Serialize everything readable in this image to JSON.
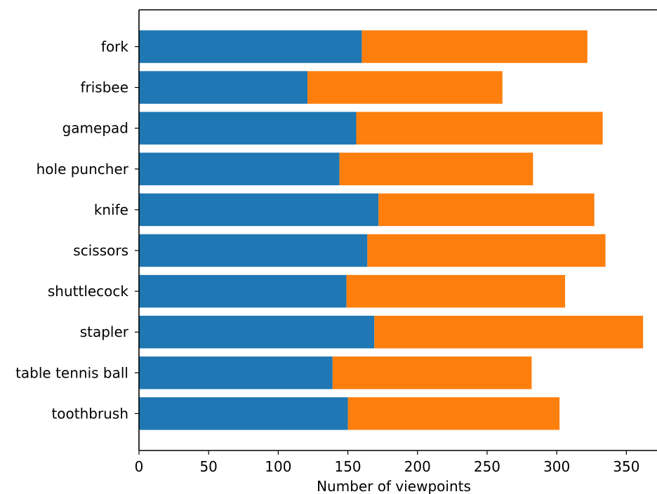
{
  "chart_data": {
    "type": "bar",
    "orientation": "horizontal",
    "stacked": true,
    "title": "",
    "xlabel": "Number of viewpoints",
    "ylabel": "",
    "xlim": [
      0,
      372
    ],
    "xticks": [
      0,
      50,
      100,
      150,
      200,
      250,
      300,
      350
    ],
    "grid": false,
    "legend": "none",
    "categories": [
      "fork",
      "frisbee",
      "gamepad",
      "hole puncher",
      "knife",
      "scissors",
      "shuttlecock",
      "stapler",
      "table tennis ball",
      "toothbrush"
    ],
    "series": [
      {
        "color": "#1f77b4",
        "values": [
          160,
          121,
          156,
          144,
          172,
          164,
          149,
          169,
          139,
          150
        ]
      },
      {
        "color": "#ff7f0e",
        "values": [
          162,
          140,
          177,
          139,
          155,
          171,
          157,
          193,
          143,
          152
        ]
      }
    ]
  }
}
